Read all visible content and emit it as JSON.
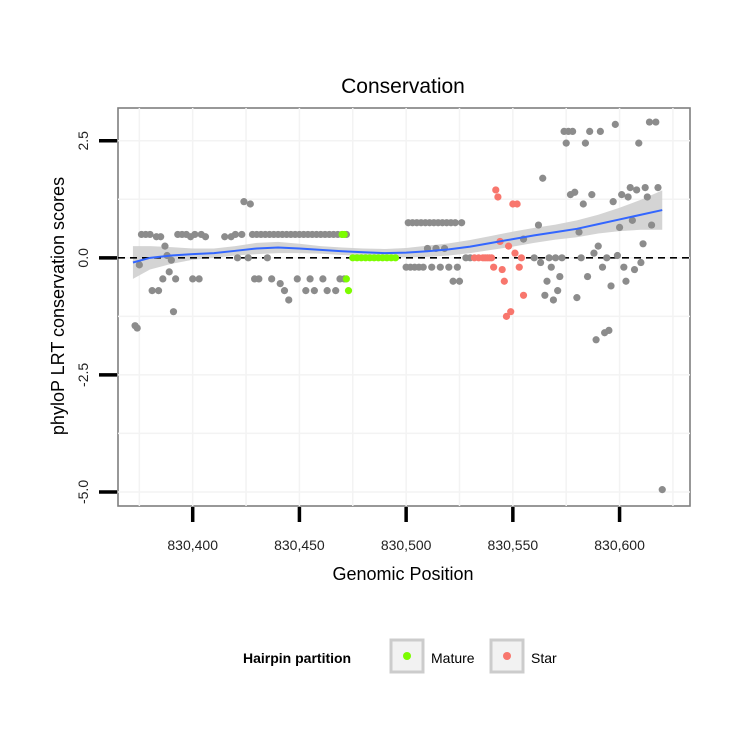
{
  "chart_data": {
    "type": "scatter",
    "title": "Conservation",
    "xlabel": "Genomic Position",
    "ylabel": "phyloP LRT conservation scores",
    "xlim": [
      830365,
      830633
    ],
    "ylim": [
      -5.3,
      3.2
    ],
    "x_ticks": [
      830400,
      830450,
      830500,
      830550,
      830600
    ],
    "x_tick_labels": [
      "830,400",
      "830,450",
      "830,500",
      "830,550",
      "830,600"
    ],
    "y_ticks": [
      -5.0,
      -2.5,
      0.0,
      2.5
    ],
    "y_tick_labels": [
      "-5.0",
      "-2.5",
      "0.0",
      "2.5"
    ],
    "reference_line": {
      "y": 0,
      "style": "dashed"
    },
    "legend": {
      "title": "Hairpin partition",
      "position": "bottom",
      "entries": [
        {
          "label": "Mature",
          "color": "#7CFC00"
        },
        {
          "label": "Star",
          "color": "#F8766D"
        }
      ]
    },
    "colors": {
      "other": "#8c8c8c",
      "smooth": "#3366FF",
      "band": "#cccccc"
    },
    "series": [
      {
        "name": "Other",
        "points": [
          [
            830373,
            -1.45
          ],
          [
            830374,
            -1.5
          ],
          [
            830375,
            -0.15
          ],
          [
            830376,
            0.5
          ],
          [
            830378,
            0.5
          ],
          [
            830380,
            0.5
          ],
          [
            830381,
            -0.7
          ],
          [
            830383,
            0.45
          ],
          [
            830384,
            -0.7
          ],
          [
            830385,
            0.45
          ],
          [
            830386,
            -0.45
          ],
          [
            830387,
            0.25
          ],
          [
            830388,
            0.05
          ],
          [
            830389,
            -0.3
          ],
          [
            830390,
            -0.05
          ],
          [
            830391,
            -1.15
          ],
          [
            830392,
            -0.45
          ],
          [
            830393,
            0.5
          ],
          [
            830395,
            0.5
          ],
          [
            830397,
            0.5
          ],
          [
            830399,
            0.45
          ],
          [
            830400,
            -0.45
          ],
          [
            830401,
            0.5
          ],
          [
            830403,
            -0.45
          ],
          [
            830404,
            0.5
          ],
          [
            830406,
            0.45
          ],
          [
            830415,
            0.45
          ],
          [
            830418,
            0.45
          ],
          [
            830420,
            0.5
          ],
          [
            830421,
            0.0
          ],
          [
            830423,
            0.5
          ],
          [
            830424,
            1.2
          ],
          [
            830426,
            0.0
          ],
          [
            830427,
            1.15
          ],
          [
            830428,
            0.5
          ],
          [
            830429,
            -0.45
          ],
          [
            830430,
            0.5
          ],
          [
            830431,
            -0.45
          ],
          [
            830432,
            0.5
          ],
          [
            830434,
            0.5
          ],
          [
            830435,
            0.0
          ],
          [
            830436,
            0.5
          ],
          [
            830437,
            -0.45
          ],
          [
            830438,
            0.5
          ],
          [
            830440,
            0.5
          ],
          [
            830441,
            -0.55
          ],
          [
            830442,
            0.5
          ],
          [
            830443,
            -0.7
          ],
          [
            830444,
            0.5
          ],
          [
            830445,
            -0.9
          ],
          [
            830446,
            0.5
          ],
          [
            830448,
            0.5
          ],
          [
            830449,
            -0.45
          ],
          [
            830450,
            0.5
          ],
          [
            830452,
            0.5
          ],
          [
            830453,
            -0.7
          ],
          [
            830454,
            0.5
          ],
          [
            830455,
            -0.45
          ],
          [
            830456,
            0.5
          ],
          [
            830457,
            -0.7
          ],
          [
            830458,
            0.5
          ],
          [
            830460,
            0.5
          ],
          [
            830461,
            -0.45
          ],
          [
            830462,
            0.5
          ],
          [
            830463,
            -0.7
          ],
          [
            830464,
            0.5
          ],
          [
            830466,
            0.5
          ],
          [
            830467,
            -0.7
          ],
          [
            830468,
            0.5
          ],
          [
            830469,
            -0.45
          ],
          [
            830470,
            0.5
          ],
          [
            830471,
            -0.45
          ],
          [
            830472,
            0.5
          ],
          [
            830500,
            -0.2
          ],
          [
            830501,
            0.75
          ],
          [
            830502,
            -0.2
          ],
          [
            830503,
            0.75
          ],
          [
            830504,
            -0.2
          ],
          [
            830505,
            0.75
          ],
          [
            830506,
            -0.2
          ],
          [
            830507,
            0.75
          ],
          [
            830508,
            -0.2
          ],
          [
            830509,
            0.75
          ],
          [
            830510,
            0.2
          ],
          [
            830511,
            0.75
          ],
          [
            830512,
            -0.2
          ],
          [
            830513,
            0.75
          ],
          [
            830514,
            0.2
          ],
          [
            830515,
            0.75
          ],
          [
            830516,
            -0.2
          ],
          [
            830517,
            0.75
          ],
          [
            830518,
            0.2
          ],
          [
            830519,
            0.75
          ],
          [
            830520,
            -0.2
          ],
          [
            830521,
            0.75
          ],
          [
            830522,
            -0.5
          ],
          [
            830523,
            0.75
          ],
          [
            830524,
            -0.2
          ],
          [
            830525,
            -0.5
          ],
          [
            830526,
            0.75
          ],
          [
            830528,
            0.0
          ],
          [
            830530,
            0.0
          ],
          [
            830555,
            0.4
          ],
          [
            830560,
            0.0
          ],
          [
            830562,
            0.7
          ],
          [
            830563,
            -0.1
          ],
          [
            830564,
            1.7
          ],
          [
            830565,
            -0.8
          ],
          [
            830566,
            -0.5
          ],
          [
            830567,
            0.0
          ],
          [
            830568,
            -0.2
          ],
          [
            830569,
            -0.9
          ],
          [
            830570,
            0.0
          ],
          [
            830571,
            -0.7
          ],
          [
            830572,
            -0.4
          ],
          [
            830573,
            0.0
          ],
          [
            830574,
            2.7
          ],
          [
            830575,
            2.45
          ],
          [
            830576,
            2.7
          ],
          [
            830577,
            1.35
          ],
          [
            830578,
            2.7
          ],
          [
            830579,
            1.4
          ],
          [
            830580,
            -0.85
          ],
          [
            830581,
            0.55
          ],
          [
            830582,
            0.0
          ],
          [
            830583,
            1.15
          ],
          [
            830584,
            2.45
          ],
          [
            830585,
            -0.4
          ],
          [
            830586,
            2.7
          ],
          [
            830587,
            1.35
          ],
          [
            830588,
            0.1
          ],
          [
            830589,
            -1.75
          ],
          [
            830590,
            0.25
          ],
          [
            830591,
            2.7
          ],
          [
            830592,
            -0.2
          ],
          [
            830593,
            -1.6
          ],
          [
            830594,
            0.0
          ],
          [
            830595,
            -1.55
          ],
          [
            830596,
            -0.6
          ],
          [
            830597,
            1.2
          ],
          [
            830598,
            2.85
          ],
          [
            830599,
            0.05
          ],
          [
            830600,
            0.65
          ],
          [
            830601,
            1.35
          ],
          [
            830602,
            -0.2
          ],
          [
            830603,
            -0.5
          ],
          [
            830604,
            1.3
          ],
          [
            830605,
            1.5
          ],
          [
            830606,
            0.8
          ],
          [
            830607,
            -0.25
          ],
          [
            830608,
            1.45
          ],
          [
            830609,
            2.45
          ],
          [
            830610,
            -0.1
          ],
          [
            830611,
            0.3
          ],
          [
            830612,
            1.5
          ],
          [
            830613,
            1.3
          ],
          [
            830614,
            2.9
          ],
          [
            830615,
            0.7
          ],
          [
            830617,
            2.9
          ],
          [
            830618,
            1.5
          ],
          [
            830620,
            -4.95
          ]
        ]
      },
      {
        "name": "Mature",
        "points": [
          [
            830470,
            0.5
          ],
          [
            830471,
            0.5
          ],
          [
            830472,
            -0.45
          ],
          [
            830473,
            -0.7
          ],
          [
            830475,
            0.0
          ],
          [
            830477,
            0.0
          ],
          [
            830479,
            0.0
          ],
          [
            830481,
            0.0
          ],
          [
            830483,
            0.0
          ],
          [
            830485,
            0.0
          ],
          [
            830487,
            0.0
          ],
          [
            830489,
            0.0
          ],
          [
            830491,
            0.0
          ],
          [
            830493,
            0.0
          ],
          [
            830495,
            0.0
          ]
        ]
      },
      {
        "name": "Star",
        "points": [
          [
            830532,
            0.0
          ],
          [
            830534,
            0.0
          ],
          [
            830536,
            0.0
          ],
          [
            830537,
            0.0
          ],
          [
            830538,
            0.0
          ],
          [
            830539,
            0.0
          ],
          [
            830540,
            0.0
          ],
          [
            830541,
            -0.2
          ],
          [
            830542,
            1.45
          ],
          [
            830543,
            1.3
          ],
          [
            830544,
            0.35
          ],
          [
            830545,
            -0.25
          ],
          [
            830546,
            -0.5
          ],
          [
            830547,
            -1.25
          ],
          [
            830548,
            0.25
          ],
          [
            830549,
            -1.15
          ],
          [
            830550,
            1.15
          ],
          [
            830551,
            0.1
          ],
          [
            830552,
            1.15
          ],
          [
            830553,
            -0.2
          ],
          [
            830554,
            0.0
          ],
          [
            830555,
            -0.8
          ]
        ]
      }
    ],
    "smooth_curve": {
      "x": [
        830372,
        830380,
        830390,
        830400,
        830410,
        830420,
        830430,
        830440,
        830450,
        830460,
        830470,
        830480,
        830490,
        830500,
        830510,
        830520,
        830530,
        830540,
        830550,
        830560,
        830570,
        830580,
        830590,
        830600,
        830610,
        830620
      ],
      "y": [
        -0.1,
        0.0,
        0.05,
        0.08,
        0.1,
        0.15,
        0.2,
        0.22,
        0.2,
        0.17,
        0.14,
        0.12,
        0.1,
        0.11,
        0.14,
        0.18,
        0.24,
        0.32,
        0.4,
        0.48,
        0.55,
        0.62,
        0.72,
        0.82,
        0.92,
        1.02
      ],
      "ci_half_width": [
        0.35,
        0.25,
        0.18,
        0.12,
        0.1,
        0.1,
        0.12,
        0.12,
        0.1,
        0.08,
        0.08,
        0.08,
        0.09,
        0.1,
        0.12,
        0.13,
        0.14,
        0.15,
        0.16,
        0.16,
        0.16,
        0.18,
        0.2,
        0.25,
        0.32,
        0.42
      ]
    }
  }
}
